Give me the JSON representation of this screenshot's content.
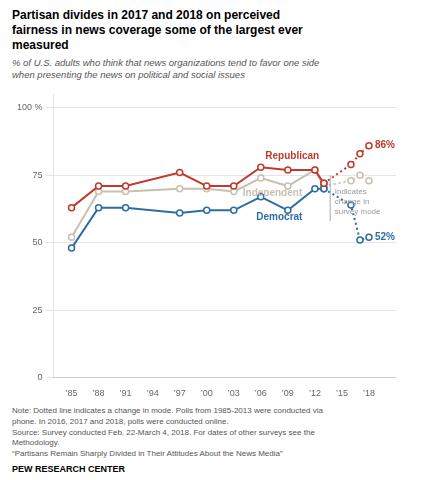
{
  "chart_data": {
    "type": "line",
    "title": [
      "Partisan divides in 2017 and 2018 on perceived",
      "fairness in news coverage some of the largest ever",
      "measured"
    ],
    "subtitle": [
      "% of U.S. adults who think that news organizations tend to favor one side",
      "when presenting the news on political and social issues"
    ],
    "series": [
      {
        "name": "Republican",
        "color": "#c0392b",
        "line_style": "solid",
        "marker": "o",
        "x": [
          1985,
          1988,
          1991,
          1997,
          2000,
          2003,
          2006,
          2009,
          2012,
          2013
        ],
        "values": [
          63,
          71,
          71,
          76,
          71,
          71,
          78,
          77,
          77,
          72
        ]
      },
      {
        "name": "Republican",
        "color": "#c0392b",
        "line_style": "dotted",
        "marker": "o",
        "x": [
          2013,
          2016,
          2017,
          2018
        ],
        "values": [
          72,
          79,
          83,
          86
        ],
        "value_labels": [
          null,
          null,
          null,
          "86%"
        ]
      },
      {
        "name": "Democrat",
        "color": "#2e6da4",
        "line_style": "solid",
        "marker": "o",
        "x": [
          1985,
          1988,
          1991,
          1997,
          2000,
          2003,
          2006,
          2009,
          2012,
          2013
        ],
        "values": [
          48,
          63,
          63,
          61,
          62,
          62,
          67,
          62,
          70,
          70
        ]
      },
      {
        "name": "Democrat",
        "color": "#2e6da4",
        "line_style": "dotted",
        "marker": "o",
        "x": [
          2013,
          2016,
          2017,
          2018
        ],
        "values": [
          70,
          64,
          51,
          52
        ],
        "value_labels": [
          null,
          null,
          null,
          "52%"
        ]
      },
      {
        "name": "Independent",
        "color": "#c8c0b0",
        "line_style": "solid",
        "marker": "o",
        "x": [
          1985,
          1988,
          1991,
          1997,
          2000,
          2003,
          2006,
          2009,
          2012,
          2013
        ],
        "values": [
          52,
          69,
          69,
          70,
          70,
          69,
          74,
          71,
          77,
          71
        ]
      },
      {
        "name": "Independent",
        "color": "#c8c0b0",
        "line_style": "dotted",
        "marker": "o",
        "x": [
          2013,
          2016,
          2017,
          2018
        ],
        "values": [
          71,
          73,
          75,
          73
        ]
      }
    ],
    "annotations": [
      {
        "text": "Republican",
        "x": 2006.5,
        "y": 82,
        "color": "#c0392b"
      },
      {
        "text": "Independent",
        "x": 2004.0,
        "y": 68.5,
        "color": "#c8c0b0"
      },
      {
        "text": "Democrat",
        "x": 2005.5,
        "y": 59.5,
        "color": "#2e6da4"
      },
      {
        "text": "Indicates\nchange in\nsurvey mode",
        "x": 2014.2,
        "y": 65,
        "line": {
          "x": 2013.7,
          "y": [
            58,
            75
          ]
        }
      }
    ],
    "xlim": [
      1983,
      2021
    ],
    "xticks": [
      {
        "value": 1985,
        "label": "’85"
      },
      {
        "value": 1988,
        "label": "’88"
      },
      {
        "value": 1991,
        "label": "’91"
      },
      {
        "value": 1994,
        "label": "’94"
      },
      {
        "value": 1997,
        "label": "’97"
      },
      {
        "value": 2000,
        "label": "’00"
      },
      {
        "value": 2003,
        "label": "’03"
      },
      {
        "value": 2006,
        "label": "’06"
      },
      {
        "value": 2009,
        "label": "’09"
      },
      {
        "value": 2012,
        "label": "’12"
      },
      {
        "value": 2015,
        "label": "’15"
      },
      {
        "value": 2018,
        "label": "’18"
      }
    ],
    "ylim": [
      0,
      105
    ],
    "yticks": [
      0,
      25,
      50,
      75,
      {
        "value": 100,
        "label": "100 %"
      }
    ],
    "grid": true,
    "note": "Note: Dotted line indicates a change in mode. Polls from 1985-2013 were conducted via\nphone. In 2016, 2017 and 2018, polls were conducted online.\nSource: Survey conducted Feb. 22-March 4, 2018. For dates of other surveys see the\nMethodology.\n“Partisans Remain Sharply Divided in Their Attitudes About the News Media”",
    "source": "PEW RESEARCH CENTER"
  }
}
